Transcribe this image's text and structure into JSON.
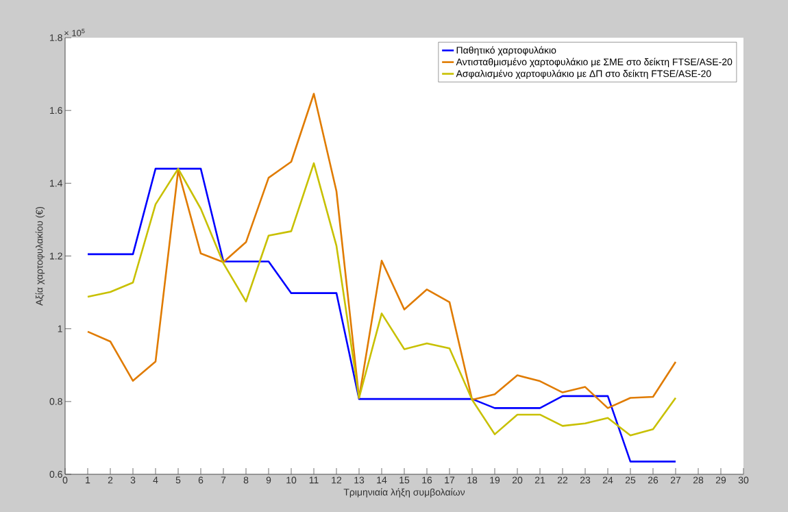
{
  "chart_data": {
    "type": "line",
    "xlabel": "Τριμηνιαία λήξη συμβολαίων",
    "ylabel": "Αξία χαρτοφυλακίου (€)",
    "annotations": [
      "× 10$^{5}$"
    ],
    "x": [
      1,
      2,
      3,
      4,
      5,
      6,
      7,
      8,
      9,
      10,
      11,
      12,
      13,
      14,
      15,
      16,
      17,
      18,
      19,
      20,
      21,
      22,
      23,
      24,
      25,
      26,
      27
    ],
    "xlim": [
      0,
      30
    ],
    "xticks": [
      0,
      1,
      2,
      3,
      4,
      5,
      6,
      7,
      8,
      9,
      10,
      11,
      12,
      13,
      14,
      15,
      16,
      17,
      18,
      19,
      20,
      21,
      22,
      23,
      24,
      25,
      26,
      27,
      28,
      29,
      30
    ],
    "ylim": [
      0.6,
      1.8
    ],
    "yticks": [
      0.6,
      0.8,
      1,
      1.2,
      1.4,
      1.6,
      1.8
    ],
    "legend": "top right",
    "grid": false,
    "marker": "none",
    "line_style": "solid",
    "series": [
      {
        "name": "Παθητικό χαρτοφυλάκιο",
        "color": "#0000ff",
        "values": [
          1.205,
          1.205,
          1.205,
          1.44,
          1.44,
          1.44,
          1.185,
          1.185,
          1.185,
          1.098,
          1.098,
          1.098,
          0.807,
          0.807,
          0.807,
          0.807,
          0.807,
          0.807,
          0.782,
          0.782,
          0.782,
          0.815,
          0.815,
          0.815,
          0.635,
          0.635,
          0.635
        ]
      },
      {
        "name": "Αντισταθμισμένο χαρτοφυλάκιο με ΣΜΕ στο δείκτη FTSE/ASE-20",
        "color": "#e07b00",
        "values": [
          0.992,
          0.965,
          0.857,
          0.91,
          1.435,
          1.207,
          1.183,
          1.238,
          1.415,
          1.459,
          1.646,
          1.378,
          0.81,
          1.187,
          1.053,
          1.108,
          1.073,
          0.805,
          0.82,
          0.872,
          0.856,
          0.825,
          0.84,
          0.782,
          0.81,
          0.813,
          0.909
        ]
      },
      {
        "name": "Ασφαλισμένο χαρτοφυλάκιο με ΔΠ στο δείκτη FTSE/ASE-20",
        "color": "#c8c000",
        "values": [
          1.088,
          1.101,
          1.127,
          1.342,
          1.44,
          1.33,
          1.18,
          1.075,
          1.256,
          1.268,
          1.455,
          1.228,
          0.81,
          1.042,
          0.944,
          0.96,
          0.946,
          0.805,
          0.71,
          0.764,
          0.764,
          0.733,
          0.74,
          0.755,
          0.707,
          0.724,
          0.81
        ]
      }
    ]
  }
}
